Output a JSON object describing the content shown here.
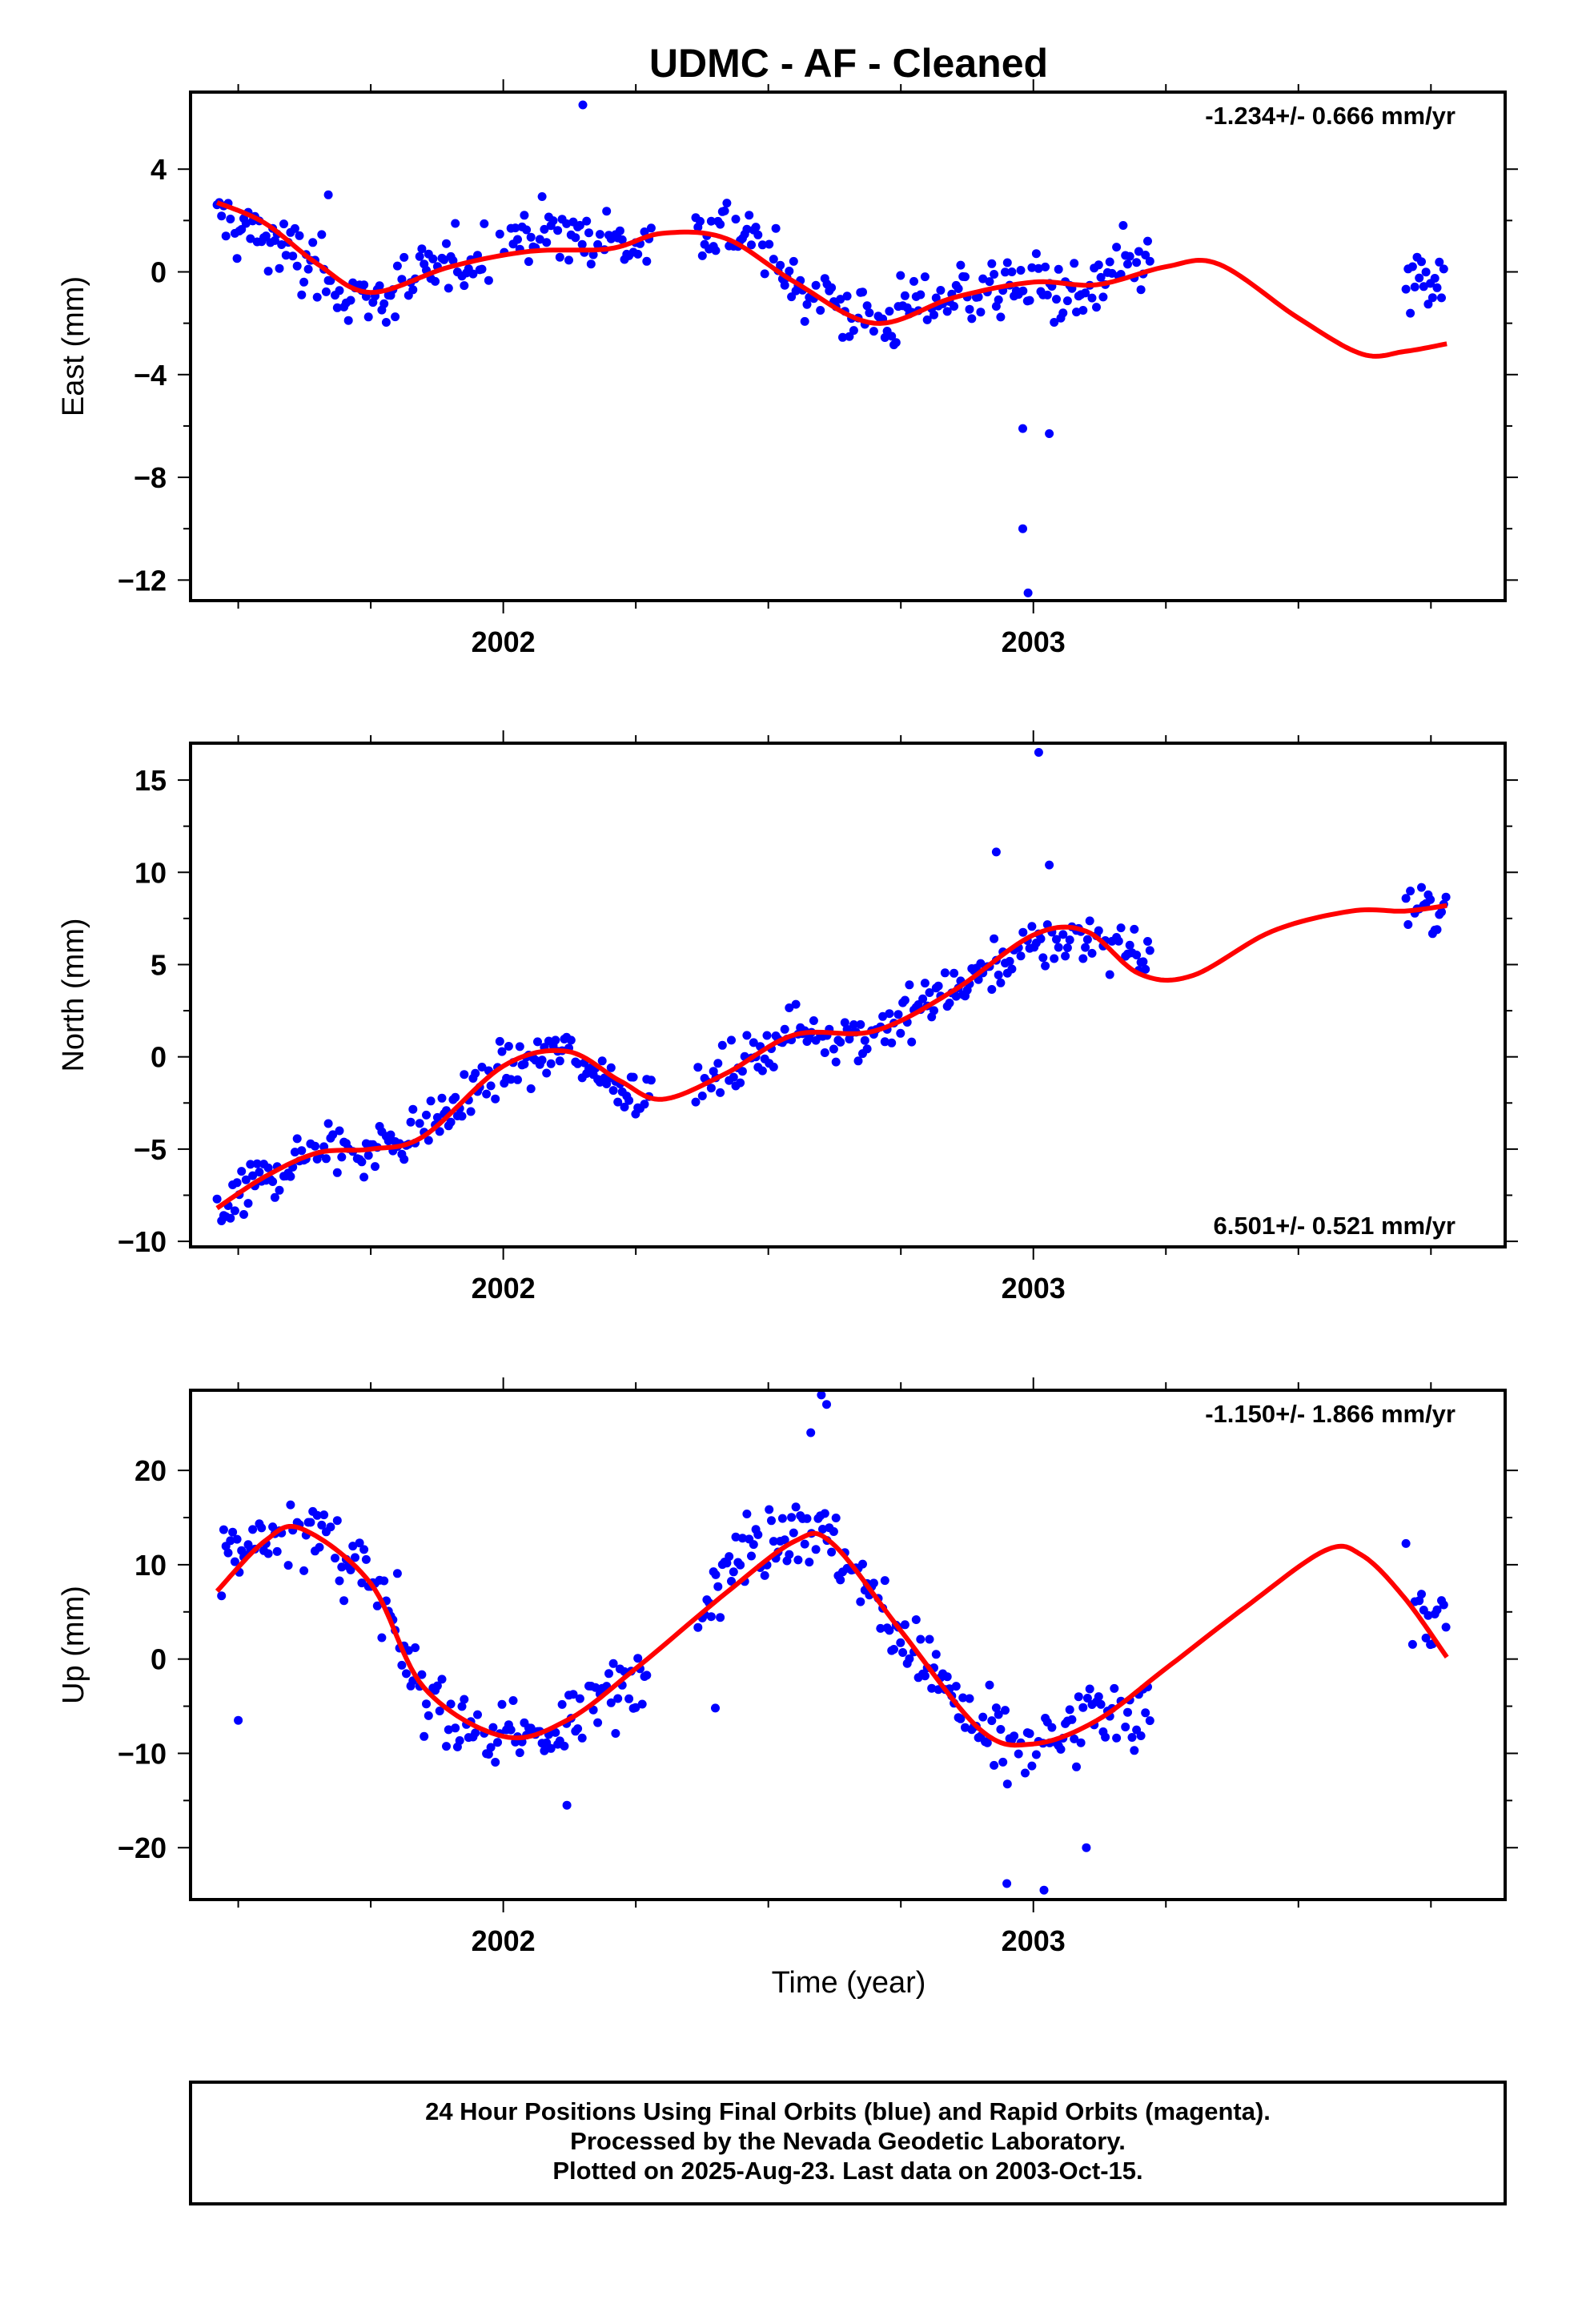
{
  "title": "UDMC  - AF - Cleaned",
  "xlabel": "Time (year)",
  "footer": {
    "line1": "24 Hour Positions Using Final Orbits (blue) and Rapid Orbits (magenta).",
    "line2": "Processed by the Nevada Geodetic Laboratory.",
    "line3": "Plotted on 2025-Aug-23. Last data on 2003-Oct-15."
  },
  "colors": {
    "final_orbits": "#0000ff",
    "fit_line": "#ff0000",
    "frame": "#000000"
  },
  "chart_data": [
    {
      "type": "scatter",
      "name": "east",
      "ylabel": "East (mm)",
      "rate": "-1.234+/- 0.666 mm/yr",
      "rate_position": "top-right",
      "xlim": [
        2001.41,
        2003.89
      ],
      "ylim": [
        -12.8,
        7.0
      ],
      "yticks": [
        4,
        0,
        -4,
        -8,
        -12
      ],
      "ytick_labels": [
        "4",
        "0",
        "−4",
        "−8",
        "−12"
      ],
      "xticks": [
        2002,
        2003
      ],
      "xtick_labels": [
        "2002",
        "2003"
      ],
      "fit_curve": {
        "x": [
          2001.46,
          2001.55,
          2001.65,
          2001.75,
          2001.9,
          2002.05,
          2002.2,
          2002.3,
          2002.42,
          2002.55,
          2002.7,
          2002.85,
          2003.0,
          2003.12,
          2003.25,
          2003.35,
          2003.5,
          2003.62,
          2003.7,
          2003.78
        ],
        "y": [
          2.7,
          1.9,
          0.3,
          -0.8,
          0.2,
          0.8,
          0.9,
          1.5,
          1.3,
          -0.4,
          -2.0,
          -1.0,
          -0.4,
          -0.5,
          0.2,
          0.3,
          -1.8,
          -3.2,
          -3.1,
          -2.8
        ]
      },
      "anchors": {
        "x": [
          2001.46,
          2001.55,
          2001.65,
          2001.75,
          2001.9,
          2002.05,
          2002.2,
          2002.3,
          2002.42,
          2002.55,
          2002.7,
          2002.85,
          2003.0,
          2003.1,
          2003.2,
          2003.7,
          2003.78
        ],
        "y": [
          2.2,
          1.4,
          0.0,
          -1.2,
          0.2,
          1.6,
          1.2,
          1.0,
          2.0,
          -0.4,
          -2.0,
          -0.8,
          -0.5,
          -1.0,
          0.4,
          -0.6,
          -0.5
        ]
      },
      "spread": 1.2,
      "gaps": [
        [
          2002.28,
          2002.36
        ],
        [
          2003.22,
          2003.7
        ]
      ],
      "outliers": {
        "x": [
          2001.67,
          2002.15,
          2002.98,
          2002.99,
          2003.03,
          2002.98
        ],
        "y": [
          3.0,
          6.5,
          -10.0,
          -12.5,
          -6.3,
          -6.1
        ]
      }
    },
    {
      "type": "scatter",
      "name": "north",
      "ylabel": "North (mm)",
      "rate": "6.501+/- 0.521 mm/yr",
      "rate_position": "bottom-right",
      "xlim": [
        2001.41,
        2003.89
      ],
      "ylim": [
        -10.3,
        17.0
      ],
      "yticks": [
        15,
        10,
        5,
        0,
        -5,
        -10
      ],
      "ytick_labels": [
        "15",
        "10",
        "5",
        "0",
        "−5",
        "−10"
      ],
      "xticks": [
        2002,
        2003
      ],
      "xtick_labels": [
        "2002",
        "2003"
      ],
      "fit_curve": {
        "x": [
          2001.46,
          2001.55,
          2001.65,
          2001.75,
          2001.85,
          2002.0,
          2002.12,
          2002.22,
          2002.3,
          2002.42,
          2002.55,
          2002.7,
          2002.85,
          2003.0,
          2003.1,
          2003.2,
          2003.3,
          2003.45,
          2003.6,
          2003.7,
          2003.78
        ],
        "y": [
          -8.2,
          -6.5,
          -5.2,
          -5.0,
          -4.3,
          -0.5,
          0.3,
          -1.3,
          -2.3,
          -0.9,
          1.2,
          1.4,
          3.6,
          6.6,
          6.8,
          4.5,
          4.4,
          6.8,
          7.9,
          7.9,
          8.2
        ]
      },
      "anchors": {
        "x": [
          2001.46,
          2001.55,
          2001.65,
          2001.75,
          2001.85,
          2002.0,
          2002.12,
          2002.22,
          2002.3,
          2002.42,
          2002.55,
          2002.7,
          2002.85,
          2003.0,
          2003.1,
          2003.2,
          2003.7,
          2003.78
        ],
        "y": [
          -8.5,
          -6.5,
          -5.0,
          -5.0,
          -4.0,
          -0.6,
          0.3,
          -1.5,
          -2.5,
          -1.0,
          1.5,
          1.2,
          3.8,
          6.0,
          6.5,
          5.5,
          8.0,
          8.0
        ]
      },
      "spread": 1.3,
      "gaps": [
        [
          2002.28,
          2002.36
        ],
        [
          2003.22,
          2003.7
        ]
      ],
      "outliers": {
        "x": [
          2003.01,
          2002.93,
          2003.03
        ],
        "y": [
          16.5,
          11.1,
          10.4
        ]
      }
    },
    {
      "type": "scatter",
      "name": "up",
      "ylabel": "Up (mm)",
      "rate": "-1.150+/- 1.866 mm/yr",
      "rate_position": "top-right",
      "xlim": [
        2001.41,
        2003.89
      ],
      "ylim": [
        -25.5,
        28.5
      ],
      "yticks": [
        20,
        10,
        0,
        -10,
        -20
      ],
      "ytick_labels": [
        "20",
        "10",
        "0",
        "−10",
        "−20"
      ],
      "xticks": [
        2002,
        2003
      ],
      "xtick_labels": [
        "2002",
        "2003"
      ],
      "fit_curve": {
        "x": [
          2001.46,
          2001.55,
          2001.62,
          2001.75,
          2001.85,
          2002.0,
          2002.12,
          2002.25,
          2002.42,
          2002.55,
          2002.62,
          2002.75,
          2002.9,
          2003.0,
          2003.12,
          2003.25,
          2003.4,
          2003.55,
          2003.62,
          2003.7,
          2003.78
        ],
        "y": [
          7.2,
          12.5,
          13.8,
          8.0,
          -3.0,
          -8.2,
          -6.5,
          -1.0,
          7.0,
          12.5,
          12.3,
          3.0,
          -7.5,
          -9.0,
          -6.5,
          -1.0,
          5.5,
          11.5,
          11.0,
          6.5,
          0.2
        ]
      },
      "anchors": {
        "x": [
          2001.46,
          2001.55,
          2001.62,
          2001.75,
          2001.85,
          2002.0,
          2002.12,
          2002.25,
          2002.42,
          2002.55,
          2002.62,
          2002.75,
          2002.9,
          2003.0,
          2003.12,
          2003.2,
          2003.7,
          2003.78
        ],
        "y": [
          10.0,
          13.0,
          15.0,
          8.0,
          -4.0,
          -9.0,
          -7.0,
          -2.0,
          10.0,
          15.0,
          12.0,
          3.0,
          -8.0,
          -10.0,
          -6.0,
          -5.0,
          6.0,
          3.0
        ]
      },
      "spread": 3.8,
      "gaps": [
        [
          2002.28,
          2002.36
        ],
        [
          2003.22,
          2003.7
        ]
      ],
      "outliers": {
        "x": [
          2002.6,
          2002.61,
          2002.58,
          2002.95,
          2003.02,
          2003.1,
          2001.5,
          2002.4,
          2002.12
        ],
        "y": [
          28.0,
          27.0,
          24.0,
          -23.8,
          -24.5,
          -20.0,
          -6.5,
          -5.2,
          -15.5
        ]
      }
    }
  ]
}
